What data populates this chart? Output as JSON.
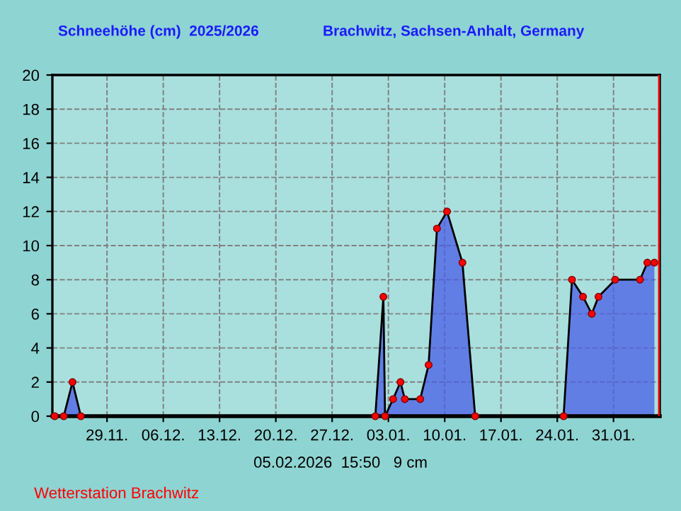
{
  "chart_data": {
    "type": "area",
    "title": "Schneehöhe (cm)  2025/2026",
    "subtitle": "Brachwitz, Sachsen-Anhalt, Germany",
    "x": [
      "2025-11-22T12:00",
      "2025-11-23T15:00",
      "2025-11-24T17:00",
      "2025-11-25T18:00",
      "2026-01-01T09:00",
      "2026-01-02T09:00",
      "2026-01-02T14:00",
      "2026-01-03T14:00",
      "2026-01-04T12:00",
      "2026-01-05T01:00",
      "2026-01-06T23:00",
      "2026-01-08T00:00",
      "2026-01-09T01:00",
      "2026-01-10T07:00",
      "2026-01-12T05:00",
      "2026-01-13T19:00",
      "2026-01-24T19:00",
      "2026-01-25T20:00",
      "2026-01-27T05:00",
      "2026-01-28T07:00",
      "2026-01-29T03:00",
      "2026-01-31T05:00",
      "2026-02-03T07:00",
      "2026-02-04T05:00",
      "2026-02-05T02:00"
    ],
    "series": [
      {
        "color": "#4a5ee6",
        "values": [
          0,
          0,
          2,
          0,
          0,
          7,
          0,
          1,
          2,
          1,
          1,
          3,
          11,
          12,
          9,
          0,
          0,
          8,
          7,
          6,
          7,
          8,
          8,
          9,
          9
        ]
      }
    ],
    "marker": "circle",
    "line_style": "solid",
    "xlim": [
      "2025-11-22T05:00",
      "2026-02-05T18:00"
    ],
    "xticks": [
      {
        "value": "2025-11-29",
        "label": "29.11."
      },
      {
        "value": "2025-12-06",
        "label": "06.12."
      },
      {
        "value": "2025-12-13",
        "label": "13.12."
      },
      {
        "value": "2025-12-20",
        "label": "20.12."
      },
      {
        "value": "2025-12-27",
        "label": "27.12."
      },
      {
        "value": "2026-01-03",
        "label": "03.01."
      },
      {
        "value": "2026-01-10",
        "label": "10.01."
      },
      {
        "value": "2026-01-17",
        "label": "17.01."
      },
      {
        "value": "2026-01-24",
        "label": "24.01."
      },
      {
        "value": "2026-01-31",
        "label": "31.01."
      }
    ],
    "ylim": [
      0,
      20
    ],
    "yticks": [
      0,
      2,
      4,
      6,
      8,
      10,
      12,
      14,
      16,
      18,
      20
    ],
    "grid": true,
    "ref_lines": [
      {
        "axis": "x",
        "value": "2026-02-05T15:50",
        "color": "#ff0000"
      }
    ],
    "annotations": [
      "05.02.2026  15:50   9 cm",
      "Wetterstation Brachwitz"
    ]
  }
}
